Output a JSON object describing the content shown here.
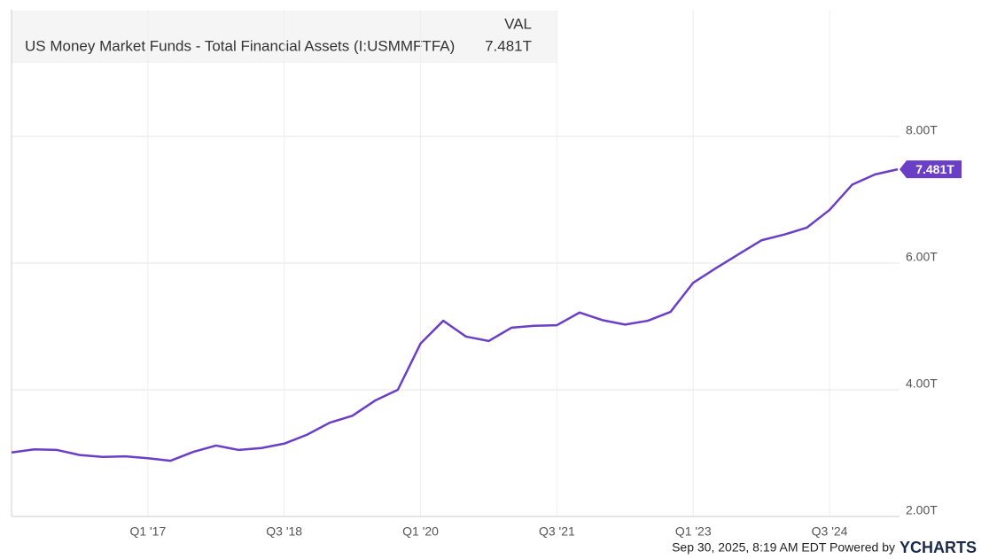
{
  "chart_data": {
    "type": "line",
    "legend_header": "VAL",
    "x": [
      2015.5,
      2015.75,
      2016,
      2016.25,
      2016.5,
      2016.75,
      2017,
      2017.25,
      2017.5,
      2017.75,
      2018,
      2018.25,
      2018.5,
      2018.75,
      2019,
      2019.25,
      2019.5,
      2019.75,
      2020,
      2020.25,
      2020.5,
      2020.75,
      2021,
      2021.25,
      2021.5,
      2021.75,
      2022,
      2022.25,
      2022.5,
      2022.75,
      2023,
      2023.25,
      2023.5,
      2023.75,
      2024,
      2024.25,
      2024.5,
      2024.75,
      2025,
      2025.25
    ],
    "series": [
      {
        "name": "US Money Market Funds - Total Financial Assets (I:USMMFTFA)",
        "color": "#6b3ec6",
        "values": [
          3.01,
          3.06,
          3.05,
          2.97,
          2.94,
          2.95,
          2.92,
          2.88,
          3.02,
          3.12,
          3.05,
          3.08,
          3.15,
          3.29,
          3.48,
          3.59,
          3.83,
          4.0,
          4.73,
          5.09,
          4.84,
          4.77,
          4.98,
          5.01,
          5.02,
          5.22,
          5.1,
          5.03,
          5.09,
          5.23,
          5.69,
          5.92,
          6.14,
          6.36,
          6.45,
          6.56,
          6.84,
          7.24,
          7.4,
          7.481
        ],
        "value_labels": [
          null,
          null,
          null,
          null,
          null,
          null,
          null,
          null,
          null,
          null,
          null,
          null,
          null,
          null,
          null,
          null,
          null,
          null,
          null,
          null,
          null,
          null,
          null,
          null,
          null,
          null,
          null,
          null,
          null,
          null,
          null,
          null,
          null,
          null,
          null,
          null,
          null,
          null,
          null,
          "7.481T"
        ]
      }
    ],
    "xlim": [
      2015.5,
      2025.25
    ],
    "xticks": [
      {
        "value": 2017,
        "label": "Q1 '17"
      },
      {
        "value": 2018.5,
        "label": "Q3 '18"
      },
      {
        "value": 2020,
        "label": "Q1 '20"
      },
      {
        "value": 2021.5,
        "label": "Q3 '21"
      },
      {
        "value": 2023,
        "label": "Q1 '23"
      },
      {
        "value": 2024.5,
        "label": "Q3 '24"
      }
    ],
    "ylim": [
      2,
      10
    ],
    "yticks": [
      {
        "value": 2,
        "label": "2.00T"
      },
      {
        "value": 4,
        "label": "4.00T"
      },
      {
        "value": 6,
        "label": "6.00T"
      },
      {
        "value": 8,
        "label": "8.00T"
      }
    ],
    "grid": true,
    "footer": "Sep 30, 2025, 8:19 AM EDT Powered by",
    "brand": "YCHARTS"
  }
}
